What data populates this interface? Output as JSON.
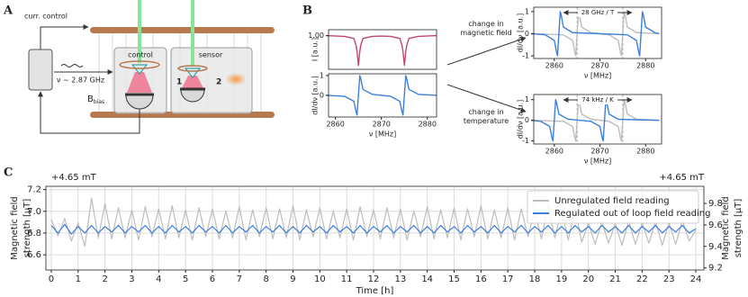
{
  "figure": {
    "panel_labels": [
      "A",
      "B",
      "C"
    ],
    "arrows": [
      {
        "lines": [
          "change in",
          "magnetic field"
        ]
      },
      {
        "lines": [
          "change in",
          "temperature"
        ]
      }
    ]
  },
  "diagram": {
    "current_control": "curr. control",
    "frequency": "ν ~ 2.87 GHz",
    "b_field": "B",
    "b_field_sub": "bias",
    "control": "control",
    "sensor": "sensor",
    "marker_1": "1",
    "marker_2": "2"
  },
  "chart_data": [
    {
      "type": "line",
      "ylabel": [
        "I [a.u.]"
      ],
      "xlim": [
        2858.5,
        2882
      ],
      "ylim": [
        0.915,
        1.015
      ],
      "yticks": [
        {
          "value": 1,
          "label": "1.00"
        }
      ],
      "x": [
        2858,
        2862,
        2864,
        2864.5,
        2864.7,
        2865,
        2865.3,
        2865.5,
        2866,
        2868,
        2870,
        2872,
        2874,
        2874.5,
        2874.7,
        2875,
        2875.3,
        2875.5,
        2876,
        2878,
        2882
      ],
      "series": [
        {
          "color": "#c2466a",
          "values": [
            1.0,
            0.998,
            0.993,
            0.975,
            0.96,
            0.925,
            0.96,
            0.975,
            0.993,
            0.998,
            0.999,
            0.998,
            0.993,
            0.975,
            0.96,
            0.925,
            0.96,
            0.975,
            0.993,
            0.998,
            1.0
          ]
        }
      ]
    },
    {
      "type": "line",
      "ylabel": [
        "dI/dν [a.u.]"
      ],
      "xlabel": "ν [MHz]",
      "xlim": [
        2858.5,
        2882
      ],
      "ylim": [
        -1.1,
        1.09
      ],
      "yticks": [
        0,
        1
      ],
      "xticks": [
        2860,
        2870,
        2880
      ],
      "x": [
        2858,
        2862,
        2864,
        2864.5,
        2864.7,
        2865,
        2865.3,
        2865.5,
        2866,
        2868,
        2870,
        2872,
        2874,
        2874.5,
        2874.7,
        2875,
        2875.3,
        2875.5,
        2876,
        2878,
        2882
      ],
      "series": [
        {
          "color": "#3c7fdc",
          "values": [
            0,
            -0.05,
            -0.3,
            -0.85,
            -1,
            0,
            1,
            0.85,
            0.3,
            0.05,
            0,
            -0.05,
            -0.3,
            -0.85,
            -1,
            0,
            1,
            0.85,
            0.3,
            0.05,
            0
          ]
        }
      ]
    },
    {
      "type": "line",
      "ylabel": [
        "dI/dν [a.u.]"
      ],
      "xlabel": "ν [MHz]",
      "xlim": [
        2855.5,
        2883.5
      ],
      "ylim": [
        -1.12,
        1.2
      ],
      "yticks": [
        -1,
        0,
        1
      ],
      "xticks": [
        2860,
        2870,
        2880
      ],
      "annotation": "28 GHz / T",
      "vlines": [
        2865,
        2875
      ],
      "series": [
        {
          "color": "#bdbdbd",
          "x": [
            2855,
            2862,
            2864,
            2864.5,
            2864.7,
            2865,
            2865.3,
            2865.5,
            2866,
            2868,
            2872,
            2874,
            2874.5,
            2874.7,
            2875,
            2875.3,
            2875.5,
            2876,
            2878,
            2883
          ],
          "values": [
            0,
            -0.05,
            -0.3,
            -0.85,
            -1,
            0,
            1,
            0.85,
            0.3,
            0.05,
            -0.05,
            -0.3,
            -0.85,
            -1,
            0,
            1,
            0.85,
            0.3,
            0.05,
            0
          ]
        },
        {
          "color": "#3c7fdc",
          "x": [
            2855,
            2858,
            2860,
            2860.5,
            2860.7,
            2861,
            2861.3,
            2861.5,
            2862,
            2864,
            2876,
            2878,
            2878.5,
            2878.7,
            2879,
            2879.3,
            2879.5,
            2880,
            2882,
            2883
          ],
          "values": [
            0,
            -0.05,
            -0.3,
            -0.85,
            -1,
            0,
            1,
            0.85,
            0.3,
            0.05,
            -0.05,
            -0.3,
            -0.85,
            -1,
            0,
            1,
            0.85,
            0.3,
            0.05,
            0
          ]
        }
      ]
    },
    {
      "type": "line",
      "ylabel": [
        "dI/dν [a.u.]"
      ],
      "xlabel": "ν [MHz]",
      "xlim": [
        2855.5,
        2883.5
      ],
      "ylim": [
        -1.15,
        1.25
      ],
      "yticks": [
        -1,
        0,
        1
      ],
      "xticks": [
        2860,
        2870,
        2880
      ],
      "annotation": "74 kHz / K",
      "vlines": [
        2865,
        2875
      ],
      "series": [
        {
          "color": "#bdbdbd",
          "x": [
            2855,
            2862,
            2864,
            2864.5,
            2864.7,
            2865,
            2865.3,
            2865.5,
            2866,
            2868,
            2872,
            2874,
            2874.5,
            2874.7,
            2875,
            2875.3,
            2875.5,
            2876,
            2878,
            2883
          ],
          "values": [
            0,
            -0.05,
            -0.3,
            -0.85,
            -1,
            0,
            1,
            0.85,
            0.3,
            0.05,
            -0.05,
            -0.3,
            -0.85,
            -1,
            0,
            1,
            0.85,
            0.3,
            0.05,
            0
          ]
        },
        {
          "color": "#3c7fdc",
          "x": [
            2855,
            2857,
            2859,
            2859.5,
            2859.7,
            2860,
            2860.3,
            2860.5,
            2861,
            2863,
            2868,
            2870,
            2870.5,
            2870.7,
            2871,
            2871.3,
            2871.5,
            2872,
            2874,
            2883
          ],
          "values": [
            0,
            -0.05,
            -0.3,
            -0.85,
            -1,
            0,
            1,
            0.85,
            0.3,
            0.05,
            -0.05,
            -0.3,
            -0.85,
            -1,
            0,
            1,
            0.85,
            0.3,
            0.05,
            0
          ]
        }
      ]
    },
    {
      "type": "line",
      "xlabel": "Time [h]",
      "ylabel": [
        "Magnetic field",
        "strength [µT]"
      ],
      "y2label": [
        "Magnetic field",
        "strength [µT]"
      ],
      "y_offset_label": "+4.65 mT",
      "y2_offset_label": "+4.65 mT",
      "y_color": "#3c7fdc",
      "y2_color": "#808080",
      "grid": true,
      "legend": "upper right",
      "xlim": [
        -0.2,
        24.3
      ],
      "ylim": [
        6.46,
        7.23
      ],
      "y2lim": [
        9.18,
        9.96
      ],
      "xticks": [
        0,
        1,
        2,
        3,
        4,
        5,
        6,
        7,
        8,
        9,
        10,
        11,
        12,
        13,
        14,
        15,
        16,
        17,
        18,
        19,
        20,
        21,
        22,
        23,
        24
      ],
      "yticks": [
        6.6,
        6.8,
        {
          "value": 7,
          "label": "7.0"
        },
        7.2
      ],
      "y2ticks": [
        9.2,
        9.4,
        9.6,
        9.8
      ],
      "x": [
        0,
        0.25,
        0.5,
        0.75,
        1,
        1.25,
        1.5,
        1.75,
        2,
        2.25,
        2.5,
        2.75,
        3,
        3.25,
        3.5,
        3.75,
        4,
        4.25,
        4.5,
        4.75,
        5,
        5.25,
        5.5,
        5.75,
        6,
        6.25,
        6.5,
        6.75,
        7,
        7.25,
        7.5,
        7.75,
        8,
        8.25,
        8.5,
        8.75,
        9,
        9.25,
        9.5,
        9.75,
        10,
        10.25,
        10.5,
        10.75,
        11,
        11.25,
        11.5,
        11.75,
        12,
        12.25,
        12.5,
        12.75,
        13,
        13.25,
        13.5,
        13.75,
        14,
        14.25,
        14.5,
        14.75,
        15,
        15.25,
        15.5,
        15.75,
        16,
        16.25,
        16.5,
        16.75,
        17,
        17.25,
        17.5,
        17.75,
        18,
        18.25,
        18.5,
        18.75,
        19,
        19.25,
        19.5,
        19.75,
        20,
        20.25,
        20.5,
        20.75,
        21,
        21.25,
        21.5,
        21.75,
        22,
        22.25,
        22.5,
        22.75,
        23,
        23.25,
        23.5,
        23.75,
        24
      ],
      "series": [
        {
          "name": "Unregulated field reading",
          "color": "#bdbdbd",
          "axis": "y2",
          "values": [
            9.65,
            9.5,
            9.66,
            9.45,
            9.62,
            9.4,
            9.85,
            9.48,
            9.8,
            9.47,
            9.76,
            9.48,
            9.74,
            9.46,
            9.77,
            9.49,
            9.75,
            9.47,
            9.78,
            9.48,
            9.74,
            9.46,
            9.76,
            9.49,
            9.75,
            9.47,
            9.73,
            9.48,
            9.77,
            9.46,
            9.74,
            9.49,
            9.76,
            9.47,
            9.75,
            9.48,
            9.78,
            9.46,
            9.74,
            9.49,
            9.76,
            9.47,
            9.73,
            9.48,
            9.75,
            9.46,
            9.77,
            9.49,
            9.74,
            9.47,
            9.76,
            9.48,
            9.75,
            9.46,
            9.73,
            9.49,
            9.77,
            9.47,
            9.74,
            9.48,
            9.76,
            9.46,
            9.75,
            9.49,
            9.78,
            9.47,
            9.74,
            9.48,
            9.76,
            9.46,
            9.75,
            9.49,
            9.73,
            9.47,
            9.77,
            9.48,
            9.74,
            9.46,
            9.75,
            9.44,
            9.62,
            9.42,
            9.63,
            9.43,
            9.61,
            9.41,
            9.64,
            9.42,
            9.62,
            9.43,
            9.63,
            9.41,
            9.62,
            9.42,
            9.64,
            9.45,
            9.55
          ]
        },
        {
          "name": "Regulated out of loop field reading",
          "color": "#3c7fdc",
          "values": [
            6.87,
            6.8,
            6.88,
            6.79,
            6.86,
            6.8,
            6.87,
            6.8,
            6.86,
            6.81,
            6.87,
            6.8,
            6.86,
            6.81,
            6.87,
            6.8,
            6.86,
            6.8,
            6.87,
            6.81,
            6.86,
            6.8,
            6.87,
            6.81,
            6.86,
            6.8,
            6.87,
            6.8,
            6.86,
            6.81,
            6.87,
            6.8,
            6.86,
            6.81,
            6.87,
            6.8,
            6.86,
            6.8,
            6.87,
            6.81,
            6.86,
            6.8,
            6.87,
            6.81,
            6.86,
            6.8,
            6.87,
            6.8,
            6.86,
            6.81,
            6.87,
            6.8,
            6.86,
            6.81,
            6.87,
            6.8,
            6.86,
            6.8,
            6.87,
            6.81,
            6.86,
            6.8,
            6.87,
            6.81,
            6.86,
            6.8,
            6.87,
            6.8,
            6.86,
            6.81,
            6.87,
            6.8,
            6.86,
            6.81,
            6.87,
            6.8,
            6.86,
            6.8,
            6.87,
            6.81,
            6.86,
            6.8,
            6.87,
            6.81,
            6.86,
            6.8,
            6.87,
            6.8,
            6.86,
            6.81,
            6.87,
            6.8,
            6.86,
            6.81,
            6.87,
            6.8,
            6.84
          ]
        }
      ]
    }
  ]
}
